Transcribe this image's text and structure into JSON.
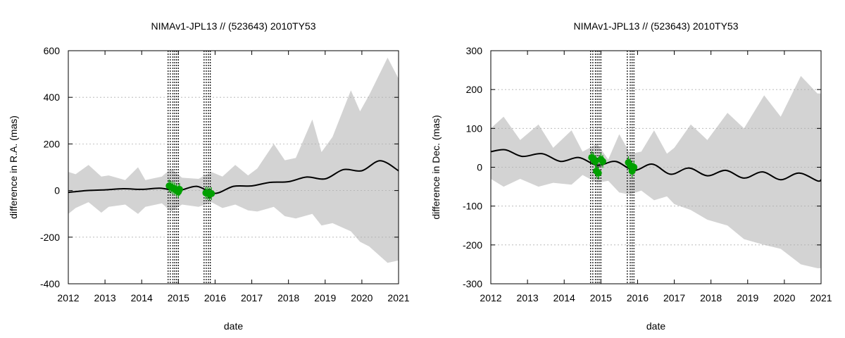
{
  "chart_data": [
    {
      "type": "line",
      "title": "NIMAv1-JPL13 // (523643) 2010TY53",
      "xlabel": "date",
      "ylabel": "difference in R.A. (mas)",
      "xlim": [
        2012,
        2021
      ],
      "ylim": [
        -400,
        600
      ],
      "xticks": [
        "2012",
        "2013",
        "2014",
        "2015",
        "2016",
        "2017",
        "2018",
        "2019",
        "2020",
        "2021"
      ],
      "yticks": [
        "600",
        "400",
        "200",
        "0",
        "-200",
        "-400"
      ],
      "grid": true,
      "colors": {
        "band": "#d3d3d3",
        "line": "#000000",
        "obs": "#00a000",
        "grid": "#b0b0b0"
      },
      "series": [
        {
          "name": "difference",
          "x": [
            2012.0,
            2012.5,
            2013.0,
            2013.5,
            2014.0,
            2014.5,
            2015.0,
            2015.5,
            2016.0,
            2016.5,
            2017.0,
            2017.5,
            2018.0,
            2018.5,
            2019.0,
            2019.5,
            2020.0,
            2020.5,
            2021.0
          ],
          "y": [
            -8,
            0,
            3,
            8,
            5,
            10,
            0,
            18,
            -12,
            18,
            20,
            35,
            38,
            58,
            50,
            90,
            85,
            128,
            85
          ]
        }
      ],
      "uncertainty_band": {
        "x": [
          2012.0,
          2012.2,
          2012.55,
          2012.9,
          2013.1,
          2013.55,
          2013.9,
          2014.1,
          2014.55,
          2014.8,
          2015.1,
          2015.55,
          2015.9,
          2016.2,
          2016.55,
          2016.9,
          2017.15,
          2017.6,
          2017.9,
          2018.2,
          2018.65,
          2018.9,
          2019.2,
          2019.7,
          2019.95,
          2020.2,
          2020.7,
          2021.0
        ],
        "upper": [
          80,
          70,
          110,
          60,
          65,
          45,
          100,
          45,
          60,
          95,
          55,
          50,
          80,
          60,
          110,
          65,
          95,
          200,
          130,
          140,
          305,
          165,
          230,
          430,
          340,
          410,
          570,
          480
        ],
        "lower": [
          -100,
          -75,
          -50,
          -95,
          -70,
          -60,
          -100,
          -70,
          -55,
          -90,
          -60,
          -70,
          -50,
          -75,
          -60,
          -85,
          -90,
          -70,
          -110,
          -120,
          -100,
          -150,
          -140,
          -175,
          -220,
          -240,
          -310,
          -300
        ]
      },
      "observations": [
        {
          "x": 2014.75,
          "y": 20
        },
        {
          "x": 2014.8,
          "y": 15
        },
        {
          "x": 2014.85,
          "y": 10
        },
        {
          "x": 2014.9,
          "y": 8
        },
        {
          "x": 2014.95,
          "y": 0
        },
        {
          "x": 2015.0,
          "y": -5
        },
        {
          "x": 2015.03,
          "y": 5
        },
        {
          "x": 2015.75,
          "y": -10
        },
        {
          "x": 2015.8,
          "y": -12
        },
        {
          "x": 2015.85,
          "y": -15
        },
        {
          "x": 2015.9,
          "y": -13
        }
      ],
      "vlines": [
        2014.72,
        2014.78,
        2014.85,
        2014.9,
        2014.95,
        2015.0,
        2015.7,
        2015.76,
        2015.82,
        2015.87
      ]
    },
    {
      "type": "line",
      "title": "NIMAv1-JPL13 // (523643) 2010TY53",
      "xlabel": "date",
      "ylabel": "difference in Dec. (mas)",
      "xlim": [
        2012,
        2021
      ],
      "ylim": [
        -300,
        300
      ],
      "xticks": [
        "2012",
        "2013",
        "2014",
        "2015",
        "2016",
        "2017",
        "2018",
        "2019",
        "2020",
        "2021"
      ],
      "yticks": [
        "300",
        "200",
        "100",
        "0",
        "-100",
        "-200",
        "-300"
      ],
      "grid": true,
      "colors": {
        "band": "#d3d3d3",
        "line": "#000000",
        "obs": "#00a000",
        "grid": "#b0b0b0"
      },
      "series": [
        {
          "name": "difference",
          "x": [
            2012.0,
            2012.4,
            2012.85,
            2013.4,
            2013.9,
            2014.4,
            2014.9,
            2015.4,
            2015.9,
            2016.4,
            2016.9,
            2017.4,
            2017.9,
            2018.4,
            2018.9,
            2019.4,
            2019.9,
            2020.4,
            2020.9,
            2021.0
          ],
          "y": [
            40,
            45,
            28,
            35,
            15,
            25,
            5,
            15,
            -8,
            8,
            -18,
            -2,
            -22,
            -8,
            -28,
            -12,
            -32,
            -15,
            -35,
            -32
          ]
        }
      ],
      "uncertainty_band": {
        "x": [
          2012.0,
          2012.35,
          2012.8,
          2013.3,
          2013.7,
          2014.2,
          2014.5,
          2014.9,
          2015.2,
          2015.5,
          2015.8,
          2016.1,
          2016.45,
          2016.8,
          2017.0,
          2017.45,
          2017.9,
          2018.45,
          2018.9,
          2019.45,
          2019.9,
          2020.45,
          2020.9,
          2021.0
        ],
        "upper": [
          100,
          130,
          70,
          110,
          50,
          95,
          40,
          60,
          20,
          85,
          35,
          40,
          95,
          35,
          50,
          110,
          70,
          140,
          100,
          185,
          130,
          235,
          190,
          190
        ],
        "lower": [
          -30,
          -50,
          -30,
          -50,
          -40,
          -45,
          -20,
          -40,
          -35,
          -65,
          -70,
          -60,
          -85,
          -75,
          -95,
          -110,
          -135,
          -150,
          -185,
          -200,
          -210,
          -250,
          -260,
          -260
        ]
      },
      "observations": [
        {
          "x": 2014.75,
          "y": 25
        },
        {
          "x": 2014.8,
          "y": 22
        },
        {
          "x": 2014.85,
          "y": 15
        },
        {
          "x": 2014.88,
          "y": -10
        },
        {
          "x": 2014.93,
          "y": -15
        },
        {
          "x": 2015.0,
          "y": 20
        },
        {
          "x": 2015.05,
          "y": 15
        },
        {
          "x": 2015.75,
          "y": 12
        },
        {
          "x": 2015.8,
          "y": 5
        },
        {
          "x": 2015.85,
          "y": -10
        },
        {
          "x": 2015.9,
          "y": 0
        }
      ],
      "vlines": [
        2014.72,
        2014.78,
        2014.85,
        2014.9,
        2014.95,
        2015.0,
        2015.72,
        2015.8,
        2015.85,
        2015.9
      ]
    }
  ]
}
